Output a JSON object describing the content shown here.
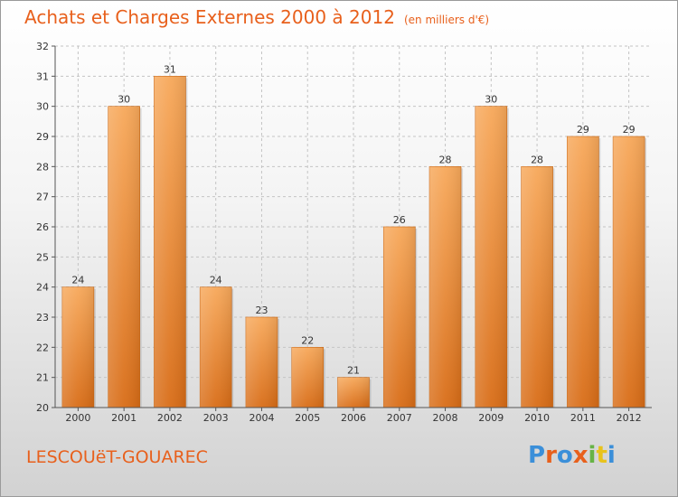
{
  "title": "Achats et Charges Externes 2000 à 2012",
  "unit": "(en milliers d'€)",
  "commune": "LESCOUëT-GOUAREC",
  "brand": {
    "letters": [
      "P",
      "r",
      "o",
      "x",
      "i",
      "t",
      "i"
    ],
    "colors": [
      "#3b8fd9",
      "#e8601c",
      "#3b8fd9",
      "#e8601c",
      "#67b346",
      "#e8c31c",
      "#3b8fd9"
    ]
  },
  "chart_data": {
    "type": "bar",
    "title": "Achats et Charges Externes 2000 à 2012",
    "subtitle": "(en milliers d'€)",
    "categories": [
      "2000",
      "2001",
      "2002",
      "2003",
      "2004",
      "2005",
      "2006",
      "2007",
      "2008",
      "2009",
      "2010",
      "2011",
      "2012"
    ],
    "values": [
      24,
      30,
      31,
      24,
      23,
      22,
      21,
      26,
      28,
      30,
      28,
      29,
      29
    ],
    "ylim": [
      20,
      32
    ],
    "yticks": [
      20,
      21,
      22,
      23,
      24,
      25,
      26,
      27,
      28,
      29,
      30,
      31,
      32
    ],
    "grid": true,
    "bar_color": "#e8862e"
  }
}
